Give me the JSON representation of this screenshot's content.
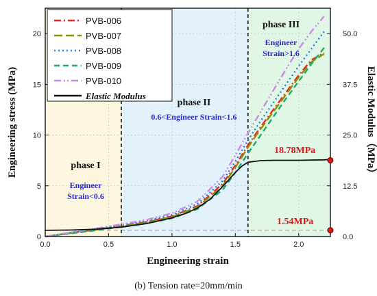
{
  "chart_data": {
    "type": "line",
    "xlabel": "Engineering strain",
    "ylabel": "Engineering stress (MPa)",
    "y2label": "Elastic Modulus（MPa）",
    "caption": "(b)  Tension rate=20mm/min",
    "xlim": [
      0,
      2.25
    ],
    "ylim": [
      0,
      22.5
    ],
    "y2lim": [
      0,
      56.25
    ],
    "x_ticks": [
      "0.0",
      "0.5",
      "1.0",
      "1.5",
      "2.0"
    ],
    "y_ticks": [
      "0",
      "5",
      "10",
      "15",
      "20"
    ],
    "y2_ticks": [
      "0.0",
      "12.5",
      "25.0",
      "37.5",
      "50.0"
    ],
    "legend_position": "top-left",
    "series": [
      {
        "name": "PVB-006",
        "color": "#e8262a",
        "dash": "dashdot",
        "x": [
          0,
          0.2,
          0.4,
          0.6,
          0.8,
          1.0,
          1.2,
          1.4,
          1.5,
          1.6,
          1.7,
          1.8,
          1.9,
          2.0,
          2.1,
          2.2
        ],
        "y": [
          0,
          0.35,
          0.7,
          1.05,
          1.45,
          2.0,
          3.0,
          5.2,
          7.0,
          9.0,
          10.8,
          12.5,
          14.2,
          15.9,
          17.4,
          18.1
        ]
      },
      {
        "name": "PVB-007",
        "color": "#8f8f00",
        "dash": "longdash",
        "x": [
          0,
          0.2,
          0.4,
          0.6,
          0.8,
          1.0,
          1.2,
          1.4,
          1.5,
          1.6,
          1.7,
          1.8,
          1.9,
          2.0,
          2.1,
          2.2
        ],
        "y": [
          0,
          0.33,
          0.68,
          1.0,
          1.4,
          1.95,
          2.9,
          5.0,
          6.8,
          8.8,
          10.6,
          12.3,
          14.0,
          15.7,
          17.2,
          18.0
        ]
      },
      {
        "name": "PVB-008",
        "color": "#2a7be8",
        "dash": "dot",
        "x": [
          0,
          0.2,
          0.4,
          0.6,
          0.8,
          1.0,
          1.2,
          1.4,
          1.5,
          1.6,
          1.7,
          1.8,
          1.9,
          2.0,
          2.1,
          2.2
        ],
        "y": [
          0,
          0.38,
          0.75,
          1.12,
          1.55,
          2.15,
          3.2,
          5.5,
          7.4,
          9.5,
          11.4,
          13.2,
          15.0,
          16.8,
          18.5,
          20.2
        ]
      },
      {
        "name": "PVB-009",
        "color": "#1daa6a",
        "dash": "dash",
        "x": [
          0,
          0.2,
          0.4,
          0.6,
          0.8,
          1.0,
          1.2,
          1.4,
          1.5,
          1.6,
          1.7,
          1.8,
          1.9,
          2.0,
          2.1,
          2.2
        ],
        "y": [
          0,
          0.3,
          0.62,
          0.95,
          1.3,
          1.8,
          2.7,
          4.6,
          6.3,
          8.2,
          10.0,
          11.8,
          13.6,
          15.3,
          17.0,
          18.6
        ]
      },
      {
        "name": "PVB-010",
        "color": "#c98ae8",
        "dash": "dashdotdot",
        "x": [
          0,
          0.2,
          0.4,
          0.6,
          0.8,
          1.0,
          1.2,
          1.4,
          1.5,
          1.6,
          1.7,
          1.8,
          1.9,
          2.0,
          2.1,
          2.2
        ],
        "y": [
          0,
          0.4,
          0.8,
          1.2,
          1.65,
          2.3,
          3.45,
          5.9,
          8.0,
          10.2,
          12.3,
          14.4,
          16.5,
          18.5,
          20.2,
          21.7
        ]
      },
      {
        "name": "Elastic Modulus",
        "color": "#111111",
        "dash": "solid",
        "axis": "right",
        "x": [
          0,
          0.2,
          0.4,
          0.6,
          0.8,
          1.0,
          1.1,
          1.2,
          1.3,
          1.4,
          1.5,
          1.55,
          1.6,
          1.7,
          1.8,
          2.0,
          2.2,
          2.25
        ],
        "y": [
          1.54,
          1.6,
          1.8,
          2.3,
          3.2,
          4.6,
          5.6,
          7.0,
          9.2,
          12.3,
          15.8,
          17.3,
          18.3,
          18.7,
          18.78,
          18.78,
          18.9,
          19.0
        ]
      }
    ],
    "phases": [
      {
        "title": "phase I",
        "desc": [
          "Engineer",
          "Strain<0.6"
        ],
        "from": 0,
        "to": 0.6,
        "color": "#fbf6dd"
      },
      {
        "title": "phase II",
        "desc": [
          "0.6<Engineer  Strain<1.6"
        ],
        "from": 0.6,
        "to": 1.6,
        "color": "#e3f1fb"
      },
      {
        "title": "phase III",
        "desc": [
          "Engineer",
          "Strain>1.6"
        ],
        "from": 1.6,
        "to": 2.25,
        "color": "#dff7e4"
      }
    ],
    "boundaries": [
      0.6,
      1.6
    ],
    "annotations": [
      {
        "text": "18.78MPa",
        "value": 18.78,
        "axis": "right"
      },
      {
        "text": "1.54MPa",
        "value": 1.54,
        "axis": "right"
      }
    ]
  }
}
